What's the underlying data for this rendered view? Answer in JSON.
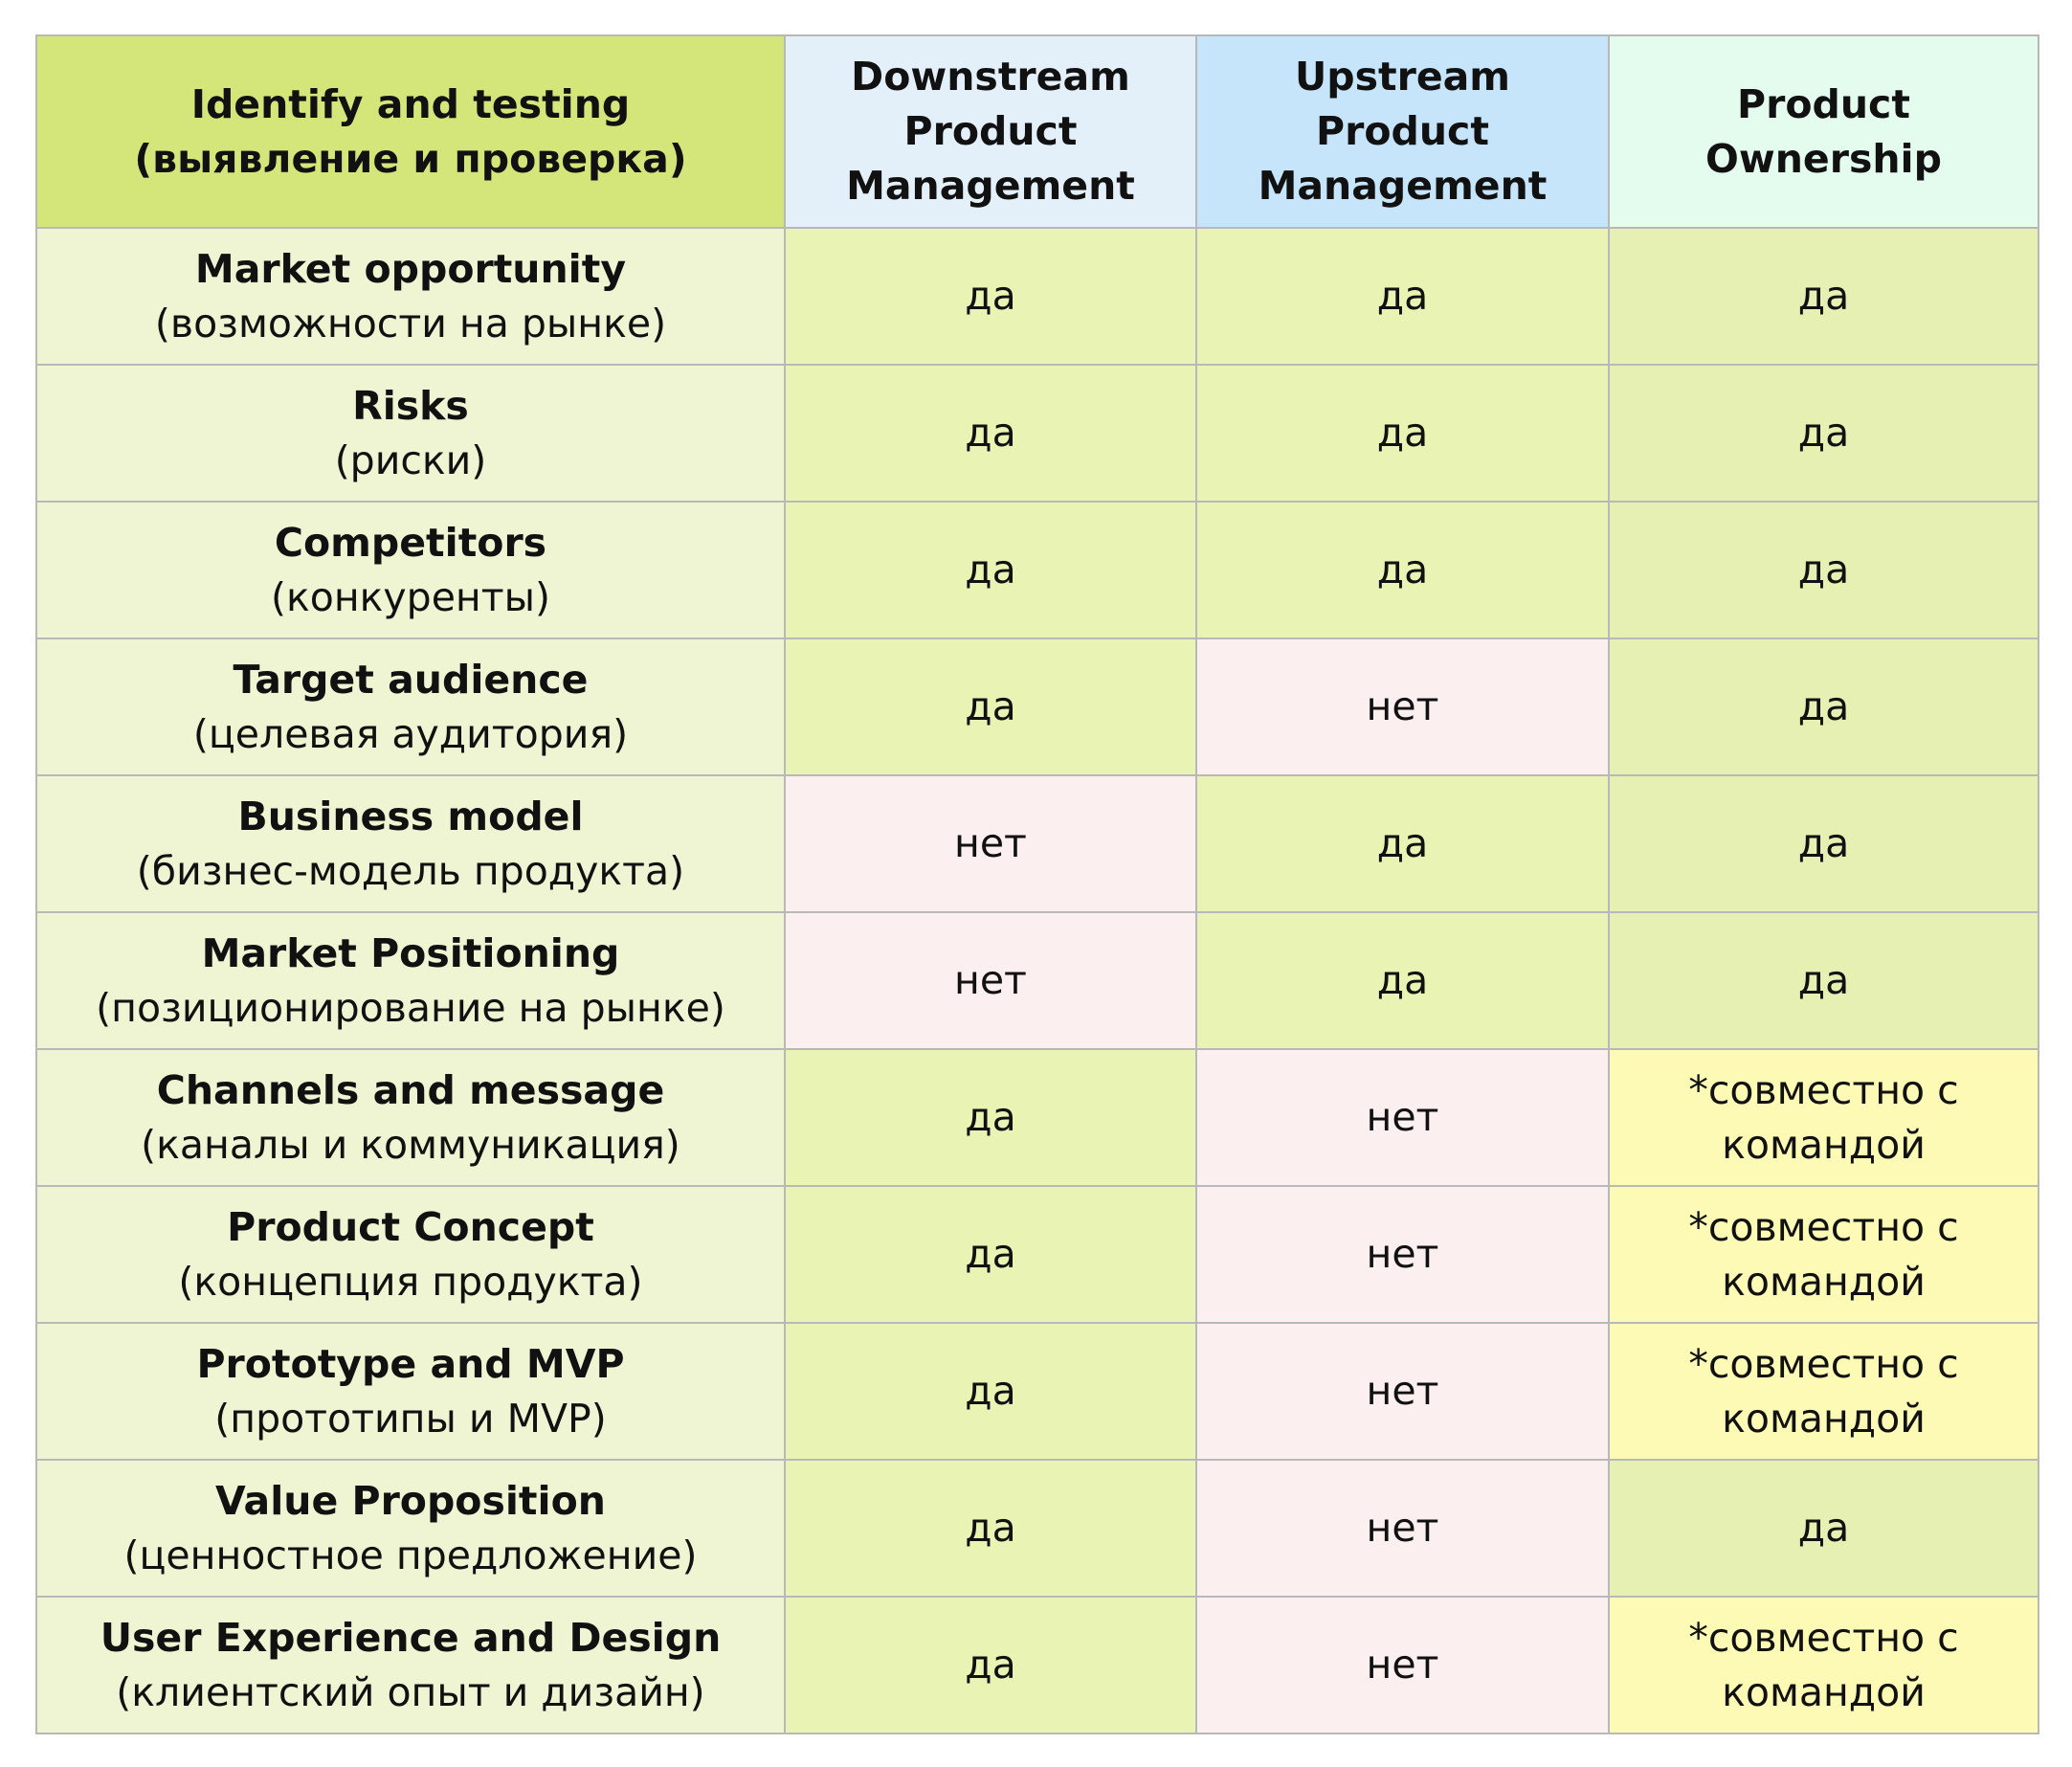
{
  "header": {
    "col0": [
      "Identify and testing",
      "(выявление и проверка)"
    ],
    "col1": [
      "Downstream",
      "Product",
      "Management"
    ],
    "col2": [
      "Upstream",
      "Product",
      "Management"
    ],
    "col3": [
      "Product",
      "Ownership"
    ]
  },
  "colors": {
    "yes": "#e9f4b4",
    "no": "#fbeff0",
    "joint": "#fdfab5",
    "label": "#eff4d2",
    "header_main": "#d4e57a"
  },
  "rows": [
    {
      "en": "Market opportunity",
      "ru": "(возможности на рынке)",
      "v1": "да",
      "v2": "да",
      "v3": [
        "да"
      ],
      "s1": "yes",
      "s2": "yes",
      "s3": "yes-alt"
    },
    {
      "en": "Risks",
      "ru": "(риски)",
      "v1": "да",
      "v2": "да",
      "v3": [
        "да"
      ],
      "s1": "yes",
      "s2": "yes",
      "s3": "yes-alt"
    },
    {
      "en": "Competitors",
      "ru": "(конкуренты)",
      "v1": "да",
      "v2": "да",
      "v3": [
        "да"
      ],
      "s1": "yes",
      "s2": "yes",
      "s3": "yes-alt"
    },
    {
      "en": "Target audience",
      "ru": "(целевая аудитория)",
      "v1": "да",
      "v2": "нет",
      "v3": [
        "да"
      ],
      "s1": "yes",
      "s2": "no",
      "s3": "yes-alt"
    },
    {
      "en": "Business model",
      "ru": "(бизнес-модель продукта)",
      "v1": "нет",
      "v2": "да",
      "v3": [
        "да"
      ],
      "s1": "no",
      "s2": "yes",
      "s3": "yes-alt"
    },
    {
      "en": "Market Positioning",
      "ru": "(позиционирование на рынке)",
      "v1": "нет",
      "v2": "да",
      "v3": [
        "да"
      ],
      "s1": "no",
      "s2": "yes",
      "s3": "yes-alt"
    },
    {
      "en": "Channels and message",
      "ru": "(каналы и коммуникация)",
      "v1": "да",
      "v2": "нет",
      "v3": [
        "*совместно с",
        "командой"
      ],
      "s1": "yes",
      "s2": "no",
      "s3": "joint"
    },
    {
      "en": "Product Concept",
      "ru": "(концепция продукта)",
      "v1": "да",
      "v2": "нет",
      "v3": [
        "*совместно с",
        "командой"
      ],
      "s1": "yes",
      "s2": "no",
      "s3": "joint"
    },
    {
      "en": "Prototype and MVP",
      "ru": "(прототипы и MVP)",
      "v1": "да",
      "v2": "нет",
      "v3": [
        "*совместно с",
        "командой"
      ],
      "s1": "yes",
      "s2": "no",
      "s3": "joint"
    },
    {
      "en": "Value Proposition",
      "ru": "(ценностное предложение)",
      "v1": "да",
      "v2": "нет",
      "v3": [
        "да"
      ],
      "s1": "yes",
      "s2": "no",
      "s3": "yes-alt"
    },
    {
      "en": "User Experience and Design",
      "ru": "(клиентский опыт и дизайн)",
      "v1": "да",
      "v2": "нет",
      "v3": [
        "*совместно с",
        "командой"
      ],
      "s1": "yes",
      "s2": "no",
      "s3": "joint"
    }
  ]
}
